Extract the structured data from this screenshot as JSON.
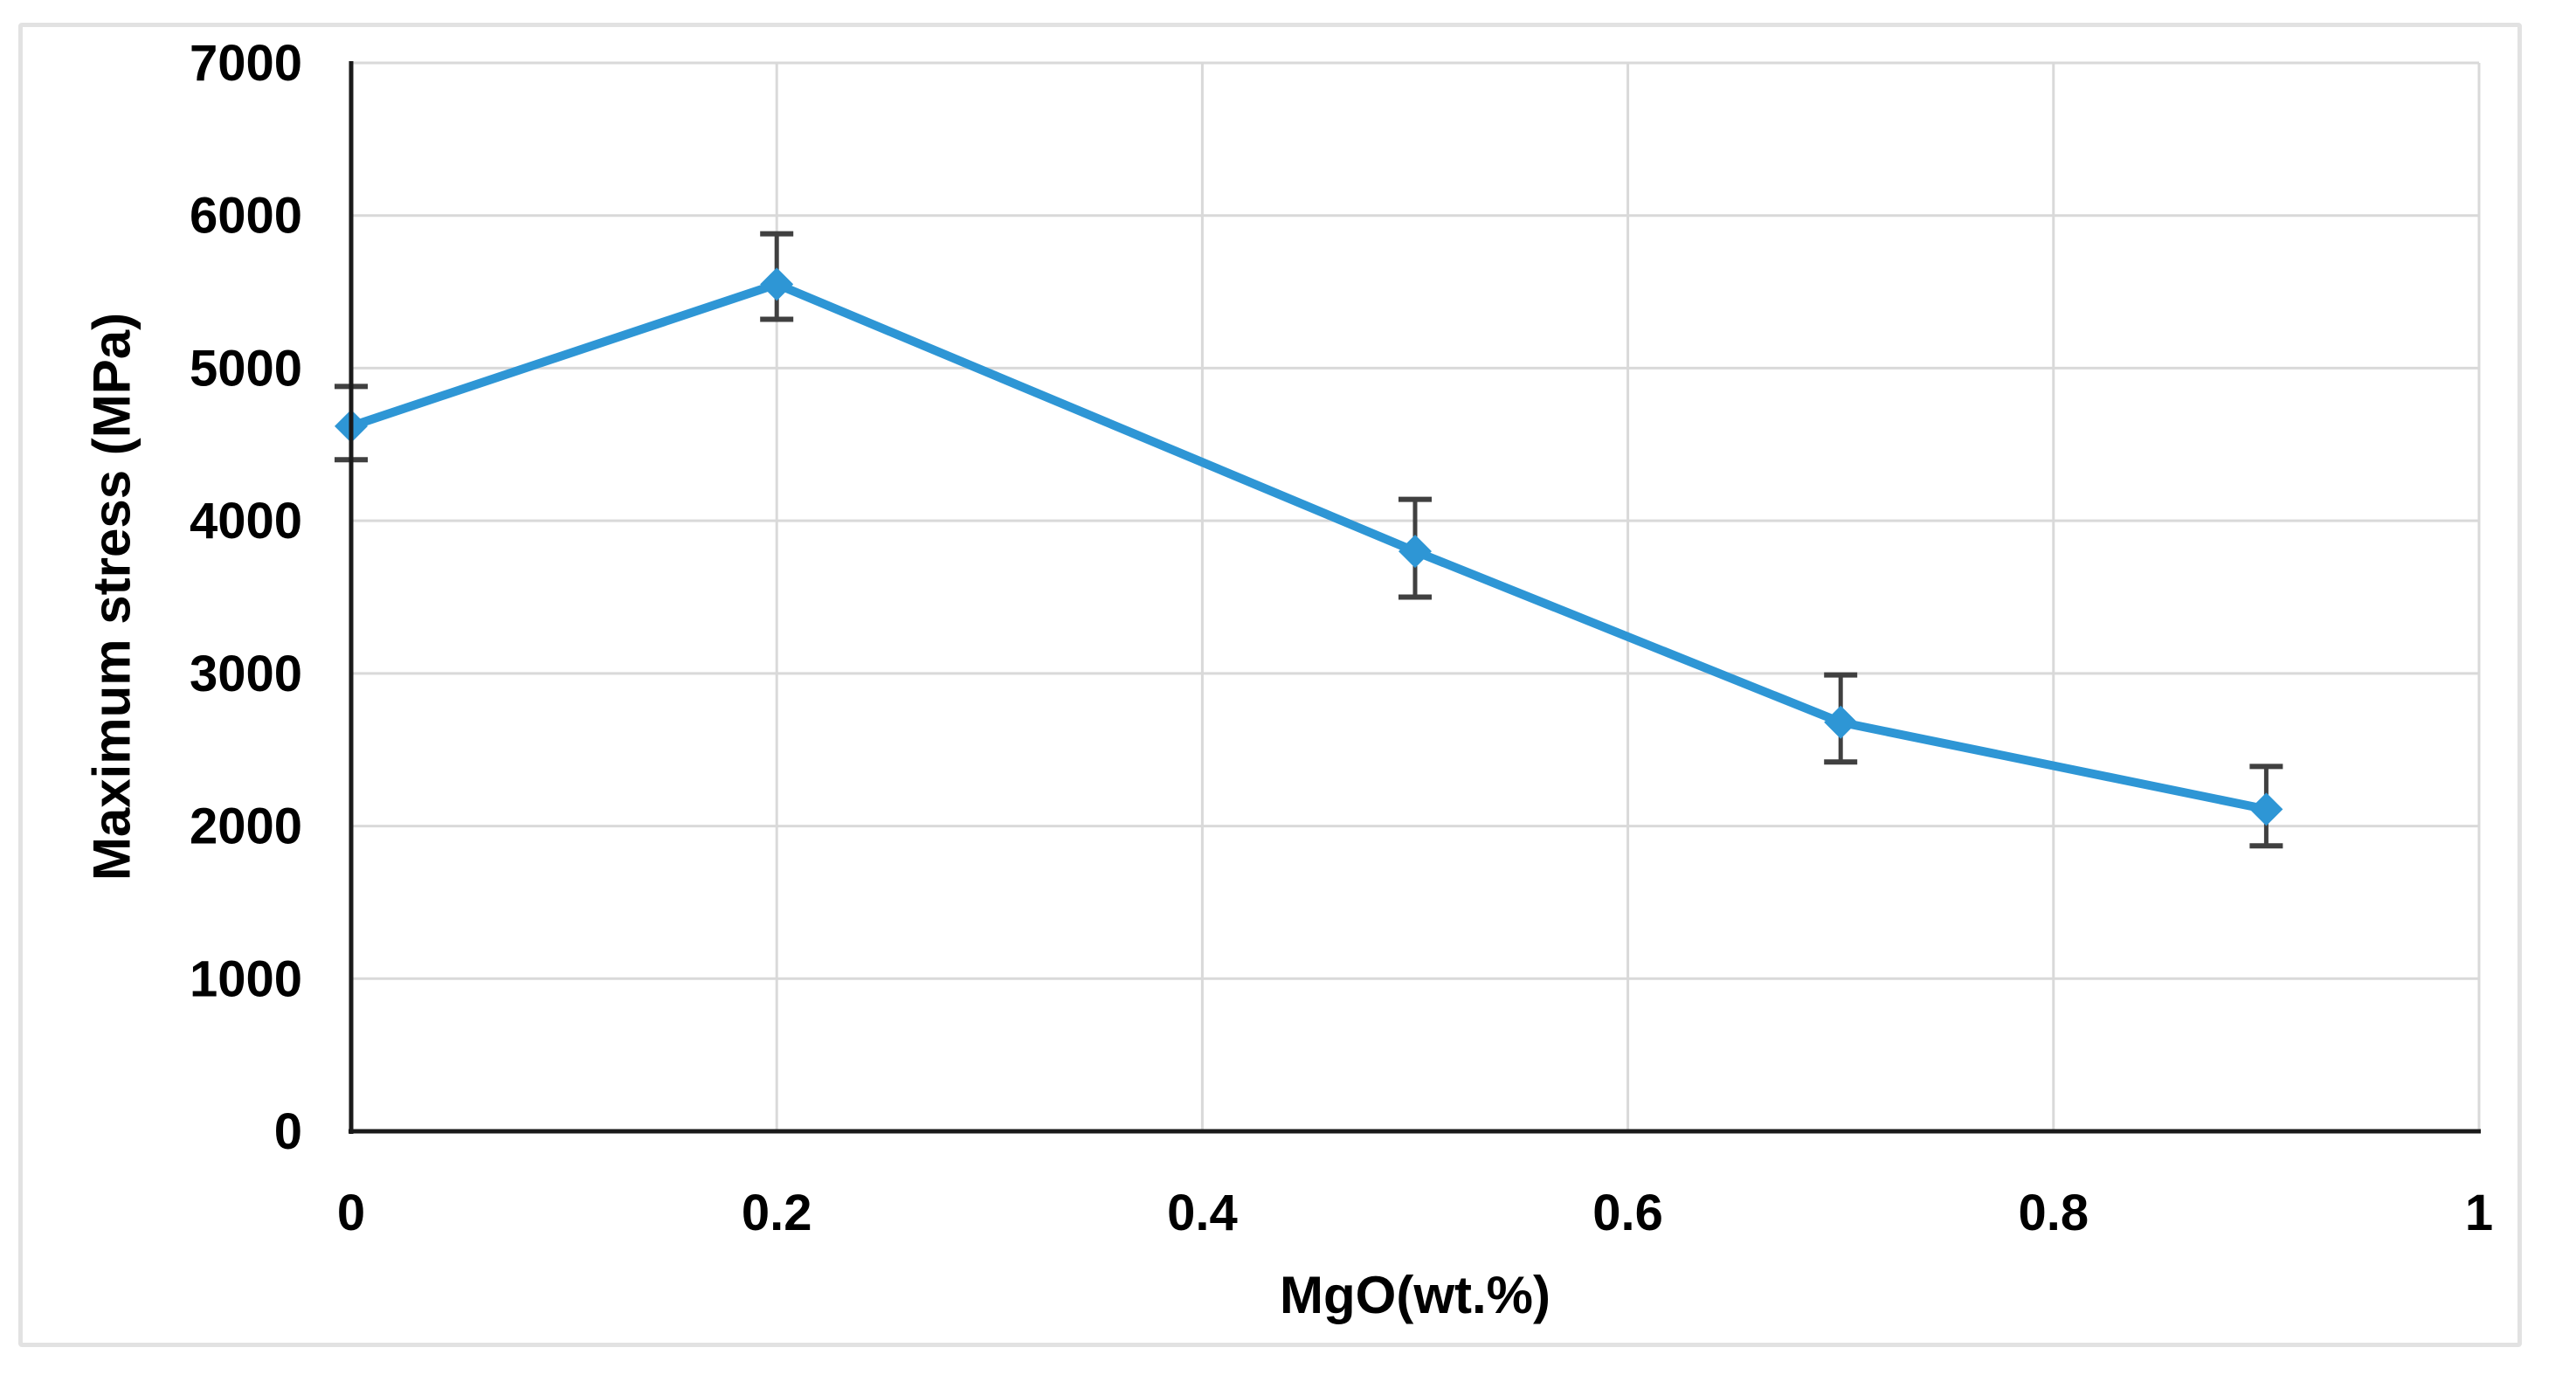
{
  "chart_data": {
    "type": "line",
    "title": "",
    "xlabel": "MgO(wt.%)",
    "ylabel": "Maximum stress (MPa)",
    "x": [
      0,
      0.2,
      0.5,
      0.7,
      0.9
    ],
    "series": [
      {
        "name": "Maximum stress",
        "values": [
          4620,
          5550,
          3800,
          2680,
          2110
        ],
        "error_upper": [
          4880,
          5880,
          4140,
          2990,
          2390
        ],
        "error_lower": [
          4400,
          5320,
          3500,
          2420,
          1870
        ]
      }
    ],
    "xlim": [
      0,
      1
    ],
    "ylim": [
      0,
      7000
    ],
    "x_ticks": [
      0,
      0.2,
      0.4,
      0.6,
      0.8,
      1
    ],
    "x_tick_labels": [
      "0",
      "0.2",
      "0.4",
      "0.6",
      "0.8",
      "1"
    ],
    "y_ticks": [
      0,
      1000,
      2000,
      3000,
      4000,
      5000,
      6000,
      7000
    ],
    "y_tick_labels": [
      "0",
      "1000",
      "2000",
      "3000",
      "4000",
      "5000",
      "6000",
      "7000"
    ],
    "grid": true,
    "legend": "none",
    "marker_shape": "diamond",
    "colors": {
      "line": "#2e96d5",
      "marker": "#2e96d5",
      "error_bar": "#404040",
      "gridline": "#d9d9d9",
      "axis": "#1a1a1a",
      "text": "#000000",
      "frame_border": "#e2e2e2",
      "background": "#ffffff"
    }
  }
}
